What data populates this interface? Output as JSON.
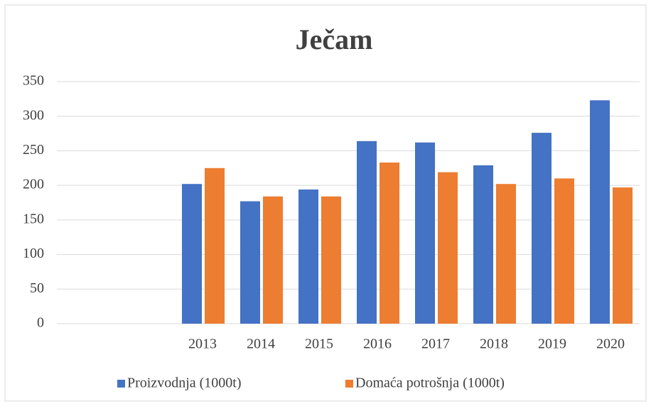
{
  "chart_data": {
    "type": "bar",
    "title": "Ječam",
    "categories": [
      null,
      null,
      "2013",
      "2014",
      "2015",
      "2016",
      "2017",
      "2018",
      "2019",
      "2020"
    ],
    "series": [
      {
        "name": "Proizvodnja (1000t)",
        "color": "#4472c4",
        "values": [
          null,
          null,
          202,
          177,
          194,
          264,
          262,
          229,
          276,
          323
        ]
      },
      {
        "name": "Domaća potrošnja (1000t)",
        "color": "#ed7d31",
        "values": [
          null,
          null,
          225,
          184,
          184,
          233,
          219,
          202,
          210,
          197
        ]
      }
    ],
    "ylim": [
      0,
      350
    ],
    "yticks": [
      0,
      50,
      100,
      150,
      200,
      250,
      300,
      350
    ],
    "grid": true,
    "legend": "bottom"
  }
}
